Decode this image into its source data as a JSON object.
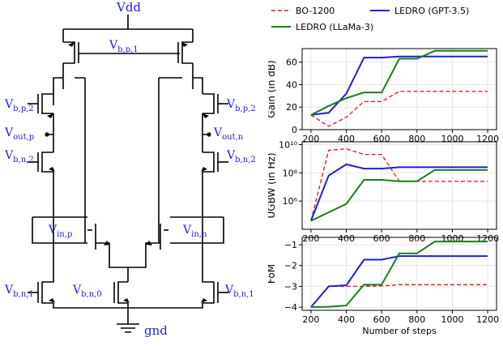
{
  "circuit": {
    "vdd": "Vdd",
    "gnd": "gnd",
    "bias": {
      "vbp1": {
        "base": "V",
        "sub": "b,p,1"
      },
      "vbp2_left": {
        "base": "V",
        "sub": "b,p,2"
      },
      "vbp2_right": {
        "base": "V",
        "sub": "b,p,2"
      },
      "vbn2_left": {
        "base": "V",
        "sub": "b,n,2"
      },
      "vbn2_right": {
        "base": "V",
        "sub": "b,n,2"
      },
      "vbn1_left": {
        "base": "V",
        "sub": "b,n,1"
      },
      "vbn1_right": {
        "base": "V",
        "sub": "b,n,1"
      },
      "vbn0": {
        "base": "V",
        "sub": "b,n,0"
      }
    },
    "outputs": {
      "voutp": {
        "base": "V",
        "sub": "out,p"
      },
      "voutn": {
        "base": "V",
        "sub": "out,n"
      }
    },
    "inputs": {
      "vinp": {
        "base": "V",
        "sub": "in,p"
      },
      "vinn": {
        "base": "V",
        "sub": "in,n"
      }
    },
    "label_color": "#1a1aff"
  },
  "legend": {
    "items": [
      {
        "name": "BO-1200",
        "color": "#d62728",
        "dash": "dashed"
      },
      {
        "name": "LEDRO (GPT-3.5)",
        "color": "#1f1fcf",
        "dash": "solid"
      },
      {
        "name": "LEDRO (LLaMa-3)",
        "color": "#1a7f1a",
        "dash": "solid"
      }
    ]
  },
  "chart_data": [
    {
      "type": "line",
      "ylabel": "Gain (in dB)",
      "xlabel": "",
      "ylim": [
        0,
        72
      ],
      "yticks": [
        0,
        20,
        40,
        60
      ],
      "ytick_labels": [
        "0",
        "20",
        "40",
        "60"
      ],
      "x": [
        200,
        300,
        400,
        500,
        600,
        700,
        800,
        900,
        1000,
        1100,
        1200
      ],
      "xtick_labels": [
        "200",
        "400",
        "600",
        "800",
        "1000",
        "1200"
      ],
      "series": [
        {
          "name": "BO-1200",
          "color": "#d62728",
          "dash": "dashed",
          "values": [
            13,
            3,
            11,
            25,
            25,
            34,
            34,
            34,
            34,
            34,
            34
          ]
        },
        {
          "name": "LEDRO (GPT-3.5)",
          "color": "#1f1fcf",
          "dash": "solid",
          "values": [
            13,
            15,
            32,
            64,
            64,
            65,
            65,
            65,
            65,
            65,
            65
          ]
        },
        {
          "name": "LEDRO (LLaMa-3)",
          "color": "#1a7f1a",
          "dash": "solid",
          "values": [
            13,
            21,
            28,
            33,
            33,
            63,
            63,
            70,
            70,
            70,
            70
          ]
        }
      ],
      "scale": "linear",
      "grid": true
    },
    {
      "type": "line",
      "ylabel": "UGBW (in Hz)",
      "xlabel": "",
      "ylim": [
        4,
        10.2
      ],
      "yticks": [
        6,
        8,
        10
      ],
      "ytick_labels": [
        "10⁶",
        "10⁸",
        "10¹⁰"
      ],
      "scale": "log10",
      "x": [
        200,
        300,
        400,
        500,
        600,
        700,
        800,
        900,
        1000,
        1100,
        1200
      ],
      "xtick_labels": [
        "200",
        "400",
        "600",
        "800",
        "1000",
        "1200"
      ],
      "series": [
        {
          "name": "BO-1200",
          "color": "#d62728",
          "dash": "dashed",
          "values": [
            4.6,
            9.6,
            9.7,
            9.3,
            9.3,
            7.4,
            7.4,
            7.4,
            7.4,
            7.4,
            7.4
          ]
        },
        {
          "name": "LEDRO (GPT-3.5)",
          "color": "#1f1fcf",
          "dash": "solid",
          "values": [
            4.6,
            7.8,
            8.6,
            8.3,
            8.3,
            8.4,
            8.4,
            8.4,
            8.4,
            8.4,
            8.4
          ]
        },
        {
          "name": "LEDRO (LLaMa-3)",
          "color": "#1a7f1a",
          "dash": "solid",
          "values": [
            4.6,
            5.2,
            5.8,
            7.5,
            7.5,
            7.4,
            7.4,
            8.2,
            8.2,
            8.2,
            8.2
          ]
        }
      ],
      "grid": true
    },
    {
      "type": "line",
      "ylabel": "FoM",
      "xlabel": "Number of steps",
      "ylim": [
        -4.15,
        -0.65
      ],
      "yticks": [
        -4,
        -3,
        -2,
        -1
      ],
      "ytick_labels": [
        "−4",
        "−3",
        "−2",
        "−1"
      ],
      "x": [
        200,
        300,
        400,
        500,
        600,
        700,
        800,
        900,
        1000,
        1100,
        1200
      ],
      "xtick_labels": [
        "200",
        "400",
        "600",
        "800",
        "1000",
        "1200"
      ],
      "series": [
        {
          "name": "BO-1200",
          "color": "#d62728",
          "dash": "dashed",
          "values": [
            -4.0,
            -3.0,
            -3.0,
            -3.0,
            -2.98,
            -2.92,
            -2.92,
            -2.92,
            -2.92,
            -2.92,
            -2.92
          ]
        },
        {
          "name": "LEDRO (GPT-3.5)",
          "color": "#1f1fcf",
          "dash": "solid",
          "values": [
            -4.0,
            -3.0,
            -2.95,
            -1.72,
            -1.72,
            -1.55,
            -1.55,
            -1.55,
            -1.55,
            -1.55,
            -1.55
          ]
        },
        {
          "name": "LEDRO (LLaMa-3)",
          "color": "#1a7f1a",
          "dash": "solid",
          "values": [
            -4.0,
            -3.98,
            -3.92,
            -2.92,
            -2.92,
            -1.42,
            -1.42,
            -0.85,
            -0.85,
            -0.85,
            -0.85
          ]
        }
      ],
      "scale": "linear",
      "grid": true
    }
  ]
}
